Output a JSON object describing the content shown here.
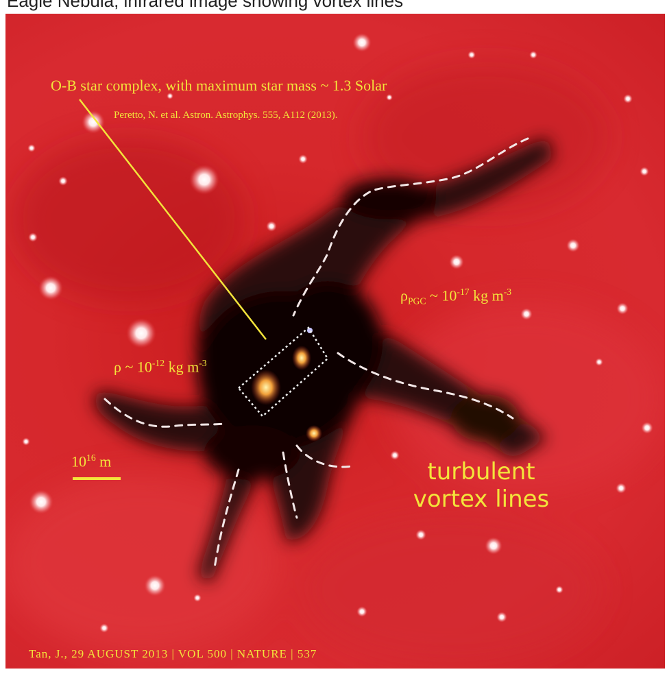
{
  "top_caption": "Eagle Nebula, infrared image showing vortex lines",
  "labels": {
    "ob_complex": "O-B star complex, with maximum star mass ~ 1.3 Solar",
    "reference": "Peretto, N. et al. Astron. Astrophys. 555, A112 (2013).",
    "rho_pgc_base": "ρ",
    "rho_pgc_sub": "PGC",
    "rho_pgc_mid": " ~ 10",
    "rho_pgc_exp": "-17",
    "rho_pgc_unit": " kg m",
    "rho_pgc_unit_exp": "-3",
    "rho_core_base": "ρ ~ 10",
    "rho_core_exp": "-12",
    "rho_core_unit": " kg m",
    "rho_core_unit_exp": "-3",
    "scale_base": "10",
    "scale_exp": "16",
    "scale_unit": " m",
    "vortex_line1": "turbulent",
    "vortex_line2": "vortex lines",
    "footer": "Tan, J., 29 AUGUST 2013 | VOL 500 | NATURE | 537"
  },
  "colors": {
    "background_red": "#d6282c",
    "cloud_dark": "#1a0605",
    "label_yellow": "#f3e43b",
    "dash_white": "#f2e6e6"
  }
}
